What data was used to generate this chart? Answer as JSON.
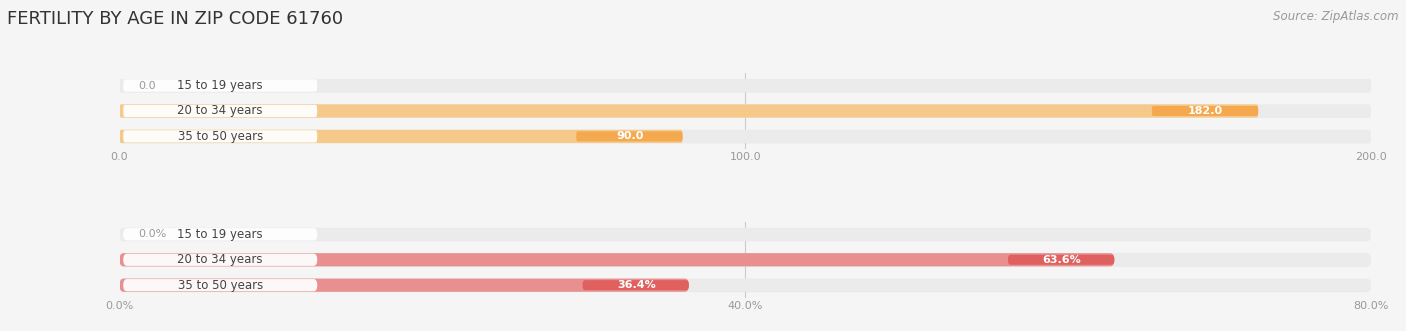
{
  "title": "FERTILITY BY AGE IN ZIP CODE 61760",
  "source": "Source: ZipAtlas.com",
  "top_chart": {
    "categories": [
      "15 to 19 years",
      "20 to 34 years",
      "35 to 50 years"
    ],
    "values": [
      0.0,
      182.0,
      90.0
    ],
    "value_labels": [
      "0.0",
      "182.0",
      "90.0"
    ],
    "xlim": [
      0,
      200
    ],
    "xticks": [
      0.0,
      100.0,
      200.0
    ],
    "xtick_labels": [
      "0.0",
      "100.0",
      "200.0"
    ],
    "bar_color": "#F5A94E",
    "bar_color_light": "#F5C98A",
    "bar_bg_color": "#EBEBEB",
    "value_label_inside_color": "#FFFFFF",
    "value_label_outside_color": "#999999",
    "cat_label_color": "#444444",
    "cat_label_bg": "#FFFFFF"
  },
  "bottom_chart": {
    "categories": [
      "15 to 19 years",
      "20 to 34 years",
      "35 to 50 years"
    ],
    "values": [
      0.0,
      63.6,
      36.4
    ],
    "value_labels": [
      "0.0%",
      "63.6%",
      "36.4%"
    ],
    "xlim": [
      0,
      80
    ],
    "xticks": [
      0.0,
      40.0,
      80.0
    ],
    "xtick_labels": [
      "0.0%",
      "40.0%",
      "80.0%"
    ],
    "bar_color": "#E06060",
    "bar_color_light": "#E89090",
    "bar_bg_color": "#EBEBEB",
    "value_label_inside_color": "#FFFFFF",
    "value_label_outside_color": "#999999",
    "cat_label_color": "#444444",
    "cat_label_bg": "#FFFFFF"
  },
  "background_color": "#F5F5F5",
  "title_fontsize": 13,
  "source_fontsize": 8.5,
  "label_fontsize": 8,
  "category_fontsize": 8.5,
  "tick_fontsize": 8,
  "bar_height": 0.52
}
